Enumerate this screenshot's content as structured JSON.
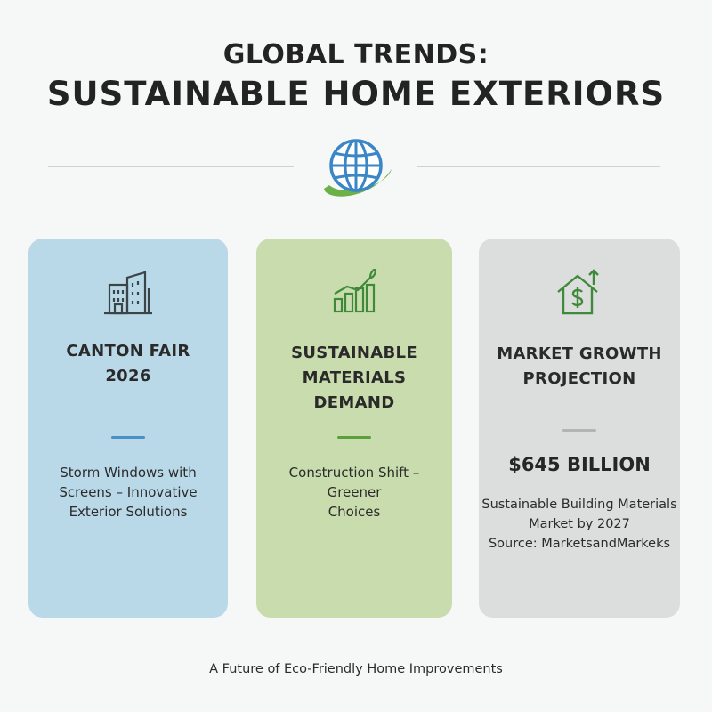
{
  "header": {
    "title_line1": "GLOBAL TRENDS:",
    "title_line2": "SUSTAINABLE HOME EXTERIORS"
  },
  "cards": [
    {
      "icon": "building-icon",
      "heading_lines": [
        "CANTON FAIR",
        "2026"
      ],
      "accent_color": "#4a90c8",
      "body_lines": [
        "Storm Windows with",
        "Screens – Innovative",
        "Exterior Solutions"
      ],
      "background": "#bad9e8"
    },
    {
      "icon": "growth-chart-leaf-icon",
      "heading_lines": [
        "SUSTAINABLE",
        "MATERIALS",
        "DEMAND"
      ],
      "accent_color": "#5aa03c",
      "body_lines": [
        "Construction Shift –",
        "Greener",
        "Choices"
      ],
      "background": "#c8dcae"
    },
    {
      "icon": "house-dollar-up-arrow-icon",
      "heading_lines": [
        "MARKET GROWTH",
        "PROJECTION"
      ],
      "accent_color": "#b4b4b4",
      "stat": "$645 BILLION",
      "body_lines": [
        "Sustainable Building Materials",
        "Market by 2027",
        "Source: MarketsandMarkeks"
      ],
      "background": "#dcdddd"
    }
  ],
  "footer": "A Future of Eco-Friendly Home Improvements",
  "colors": {
    "icon_dark": "#3b4548",
    "icon_green": "#3f8a3a",
    "globe_blue": "#3a86c6",
    "orbit_green": "#6db04a"
  }
}
